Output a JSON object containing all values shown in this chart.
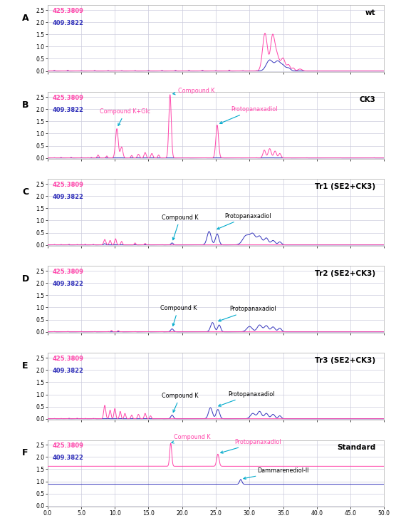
{
  "panels": [
    "A",
    "B",
    "C",
    "D",
    "E",
    "F"
  ],
  "panel_labels": [
    "wt",
    "CK3",
    "Tr1 (SE2+CK3)",
    "Tr2 (SE2+CK3)",
    "Tr3 (SE2+CK3)",
    "Standard"
  ],
  "xlim": [
    0,
    50
  ],
  "ylim_top": 2.7,
  "yticks": [
    0.0,
    0.5,
    1.0,
    1.5,
    2.0,
    2.5
  ],
  "xticks": [
    0,
    5,
    10,
    15,
    20,
    25,
    30,
    35,
    40,
    45,
    50
  ],
  "color_pink": "#FF44AA",
  "color_blue": "#3333BB",
  "color_cyan": "#00AACC",
  "label_425": "425.3809",
  "label_409": "409.3822",
  "background_color": "#FFFFFF",
  "grid_color": "#CCCCDD"
}
